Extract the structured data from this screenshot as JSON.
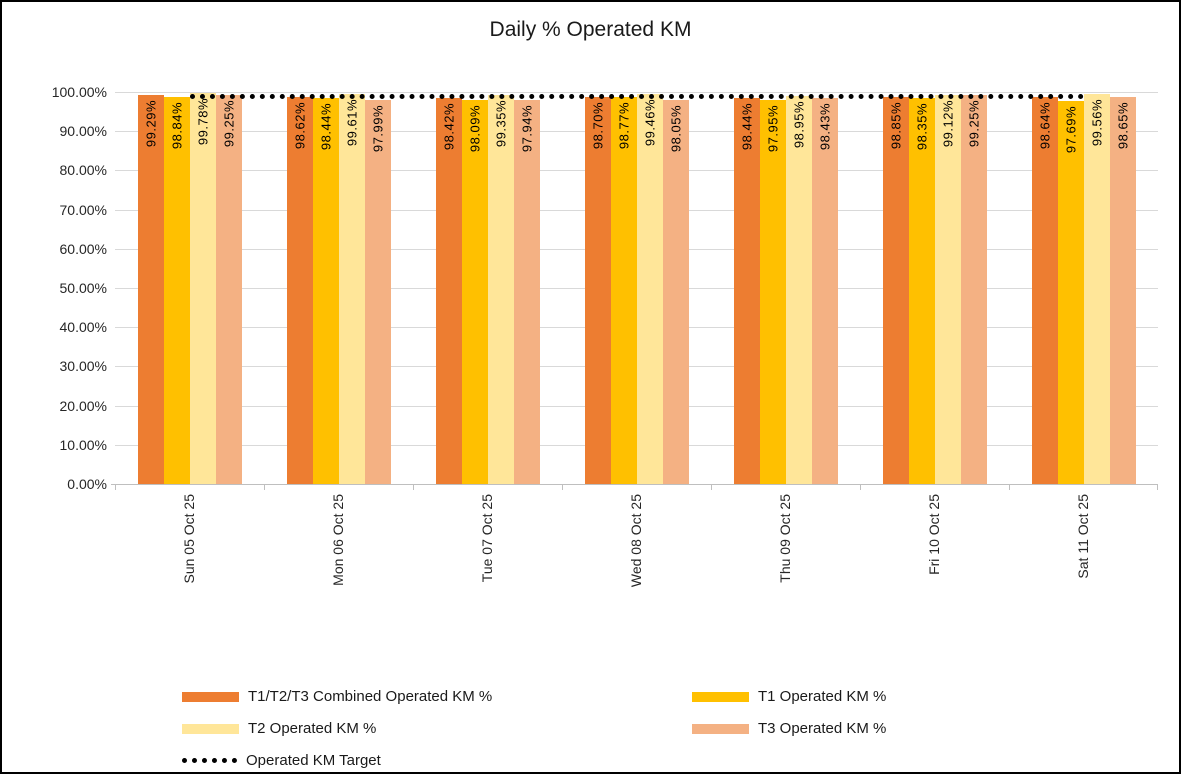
{
  "chart_data": {
    "type": "bar",
    "title": "Daily % Operated KM",
    "categories": [
      "Sun 05 Oct 25",
      "Mon 06 Oct 25",
      "Tue 07 Oct 25",
      "Wed 08 Oct 25",
      "Thu 09 Oct 25",
      "Fri 10 Oct 25",
      "Sat 11 Oct 25"
    ],
    "series": [
      {
        "name": "T1/T2/T3 Combined Operated KM %",
        "color": "#ED7D31",
        "values": [
          99.29,
          98.62,
          98.42,
          98.7,
          98.44,
          98.85,
          98.64
        ],
        "labels": [
          "99.29%",
          "98.62%",
          "98.42%",
          "98.70%",
          "98.44%",
          "98.85%",
          "98.64%"
        ]
      },
      {
        "name": "T1 Operated KM %",
        "color": "#FFC000",
        "values": [
          98.84,
          98.44,
          98.09,
          98.77,
          97.95,
          98.35,
          97.69
        ],
        "labels": [
          "98.84%",
          "98.44%",
          "98.09%",
          "98.77%",
          "97.95%",
          "98.35%",
          "97.69%"
        ]
      },
      {
        "name": "T2 Operated KM %",
        "color": "#FFE699",
        "values": [
          99.78,
          99.61,
          99.35,
          99.46,
          98.95,
          99.12,
          99.56
        ],
        "labels": [
          "99.78%",
          "99.61%",
          "99.35%",
          "99.46%",
          "98.95%",
          "99.12%",
          "99.56%"
        ]
      },
      {
        "name": "T3 Operated KM %",
        "color": "#F4B183",
        "values": [
          99.25,
          97.99,
          97.94,
          98.05,
          98.43,
          99.25,
          98.65
        ],
        "labels": [
          "99.25%",
          "97.99%",
          "97.94%",
          "98.05%",
          "98.43%",
          "99.25%",
          "98.65%"
        ]
      }
    ],
    "target_line": {
      "name": "Operated KM Target",
      "value": 99.0,
      "color": "#000000",
      "style": "dotted"
    },
    "y_axis": {
      "min": 0,
      "max": 100,
      "step": 10,
      "tick_labels": [
        "100.00%",
        "90.00%",
        "80.00%",
        "70.00%",
        "60.00%",
        "50.00%",
        "40.00%",
        "30.00%",
        "20.00%",
        "10.00%",
        "0.00%"
      ]
    },
    "grid": true,
    "legend_position": "bottom",
    "colors": {
      "gridline": "#d9d9d9",
      "axis_line": "#bfbfbf",
      "text": "#262626",
      "frame_border": "#000000"
    }
  }
}
